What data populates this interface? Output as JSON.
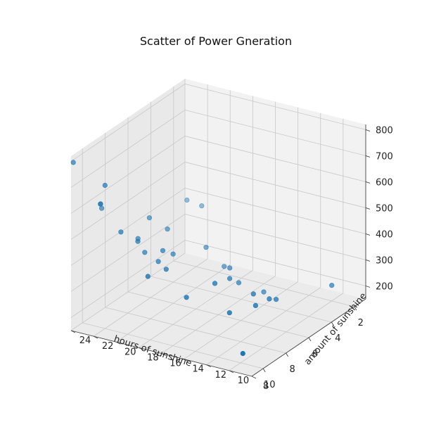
{
  "chart_data": {
    "type": "scatter",
    "projection": "3d",
    "title": "Scatter of Power Gneration",
    "xlabel": "hours of sunshine",
    "ylabel": "amount of sunshine",
    "zlabel": "",
    "xlim": [
      1,
      11
    ],
    "ylim": [
      8,
      24
    ],
    "zlim": [
      150,
      820
    ],
    "x_ticks": [
      2,
      4,
      6,
      8,
      10
    ],
    "y_ticks": [
      8,
      10,
      12,
      14,
      16,
      18,
      20,
      22,
      24
    ],
    "z_ticks": [
      200,
      300,
      400,
      500,
      600,
      700,
      800
    ],
    "grid": true,
    "marker_color": "#1f77b4",
    "series": [
      {
        "points": [
          {
            "x": 2.0,
            "y": 10,
            "z": 210
          },
          {
            "x": 3.5,
            "y": 20,
            "z": 450
          },
          {
            "x": 3.8,
            "y": 21,
            "z": 470
          },
          {
            "x": 4.0,
            "y": 14,
            "z": 200
          },
          {
            "x": 4.5,
            "y": 17,
            "z": 280
          },
          {
            "x": 4.9,
            "y": 12,
            "z": 220
          },
          {
            "x": 5.0,
            "y": 16,
            "z": 300
          },
          {
            "x": 5.1,
            "y": 18,
            "z": 360
          },
          {
            "x": 5.2,
            "y": 15,
            "z": 260
          },
          {
            "x": 5.5,
            "y": 12,
            "z": 240
          },
          {
            "x": 5.9,
            "y": 13,
            "z": 260
          },
          {
            "x": 6.0,
            "y": 15,
            "z": 300
          },
          {
            "x": 6.5,
            "y": 20,
            "z": 450
          },
          {
            "x": 6.7,
            "y": 12,
            "z": 250
          },
          {
            "x": 7.0,
            "y": 19,
            "z": 380
          },
          {
            "x": 7.1,
            "y": 21,
            "z": 500
          },
          {
            "x": 7.3,
            "y": 15,
            "z": 320
          },
          {
            "x": 7.9,
            "y": 19,
            "z": 420
          },
          {
            "x": 8.0,
            "y": 13,
            "z": 250
          },
          {
            "x": 8.1,
            "y": 21,
            "z": 450
          },
          {
            "x": 8.3,
            "y": 19,
            "z": 390
          },
          {
            "x": 8.5,
            "y": 20,
            "z": 420
          },
          {
            "x": 8.6,
            "y": 18,
            "z": 380
          },
          {
            "x": 8.8,
            "y": 16,
            "z": 300
          },
          {
            "x": 9.1,
            "y": 20,
            "z": 480
          },
          {
            "x": 9.3,
            "y": 23,
            "z": 580
          },
          {
            "x": 9.4,
            "y": 23,
            "z": 600
          },
          {
            "x": 9.6,
            "y": 21,
            "z": 520
          },
          {
            "x": 9.8,
            "y": 10,
            "z": 180
          },
          {
            "x": 10.0,
            "y": 22,
            "z": 700
          },
          {
            "x": 10.2,
            "y": 18,
            "z": 400
          },
          {
            "x": 10.4,
            "y": 22,
            "z": 640
          },
          {
            "x": 10.8,
            "y": 24,
            "z": 790
          }
        ]
      }
    ]
  }
}
